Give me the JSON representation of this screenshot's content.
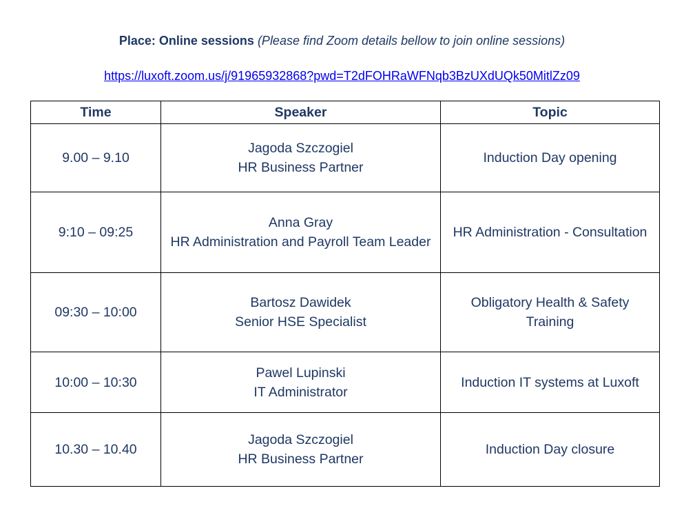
{
  "header": {
    "place_label": "Place: Online sessions",
    "place_note": "(Please find Zoom details bellow to join online sessions)",
    "zoom_link": "https://luxoft.zoom.us/j/91965932868?pwd=T2dFOHRaWFNqb3BzUXdUQk50MitlZz09"
  },
  "table": {
    "columns": [
      "Time",
      "Speaker",
      "Topic"
    ],
    "rows": [
      {
        "time": "9.00 – 9.10",
        "speaker_name": "Jagoda Szczogiel",
        "speaker_role": "HR Business Partner",
        "topic": "Induction Day opening"
      },
      {
        "time": "9:10 – 09:25",
        "speaker_name": "Anna Gray",
        "speaker_role": "HR Administration and Payroll Team Leader",
        "topic": "HR Administration - Consultation"
      },
      {
        "time": "09:30 – 10:00",
        "speaker_name": "Bartosz Dawidek",
        "speaker_role": "Senior HSE Specialist",
        "topic": "Obligatory Health & Safety Training"
      },
      {
        "time": "10:00 – 10:30",
        "speaker_name": "Pawel Lupinski",
        "speaker_role": "IT Administrator",
        "topic": "Induction IT systems at Luxoft"
      },
      {
        "time": "10.30 – 10.40",
        "speaker_name": "Jagoda Szczogiel",
        "speaker_role": "HR Business Partner",
        "topic": "Induction Day closure"
      }
    ]
  }
}
